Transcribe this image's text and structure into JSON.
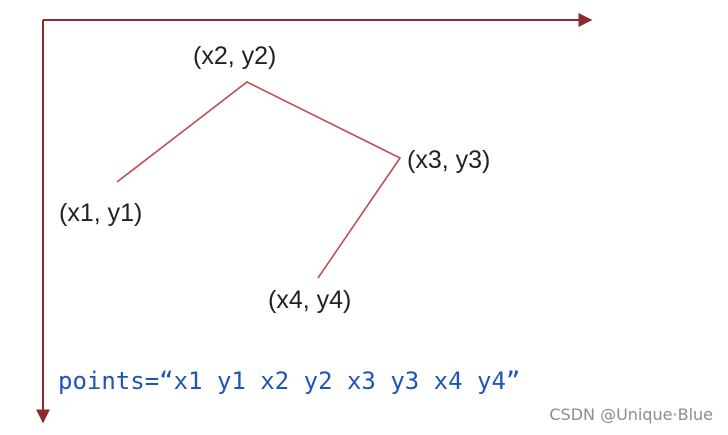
{
  "diagram": {
    "points": [
      {
        "label": "(x1, y1)"
      },
      {
        "label": "(x2, y2)"
      },
      {
        "label": "(x3, y3)"
      },
      {
        "label": "(x4, y4)"
      }
    ],
    "code_text": "points=“x1 y1 x2 y2 x3 y3 x4 y4”",
    "axis_color": "#8b2a2f",
    "line_color": "#c04a53",
    "code_color": "#1d55b8"
  },
  "watermark": "CSDN @Unique·Blue"
}
